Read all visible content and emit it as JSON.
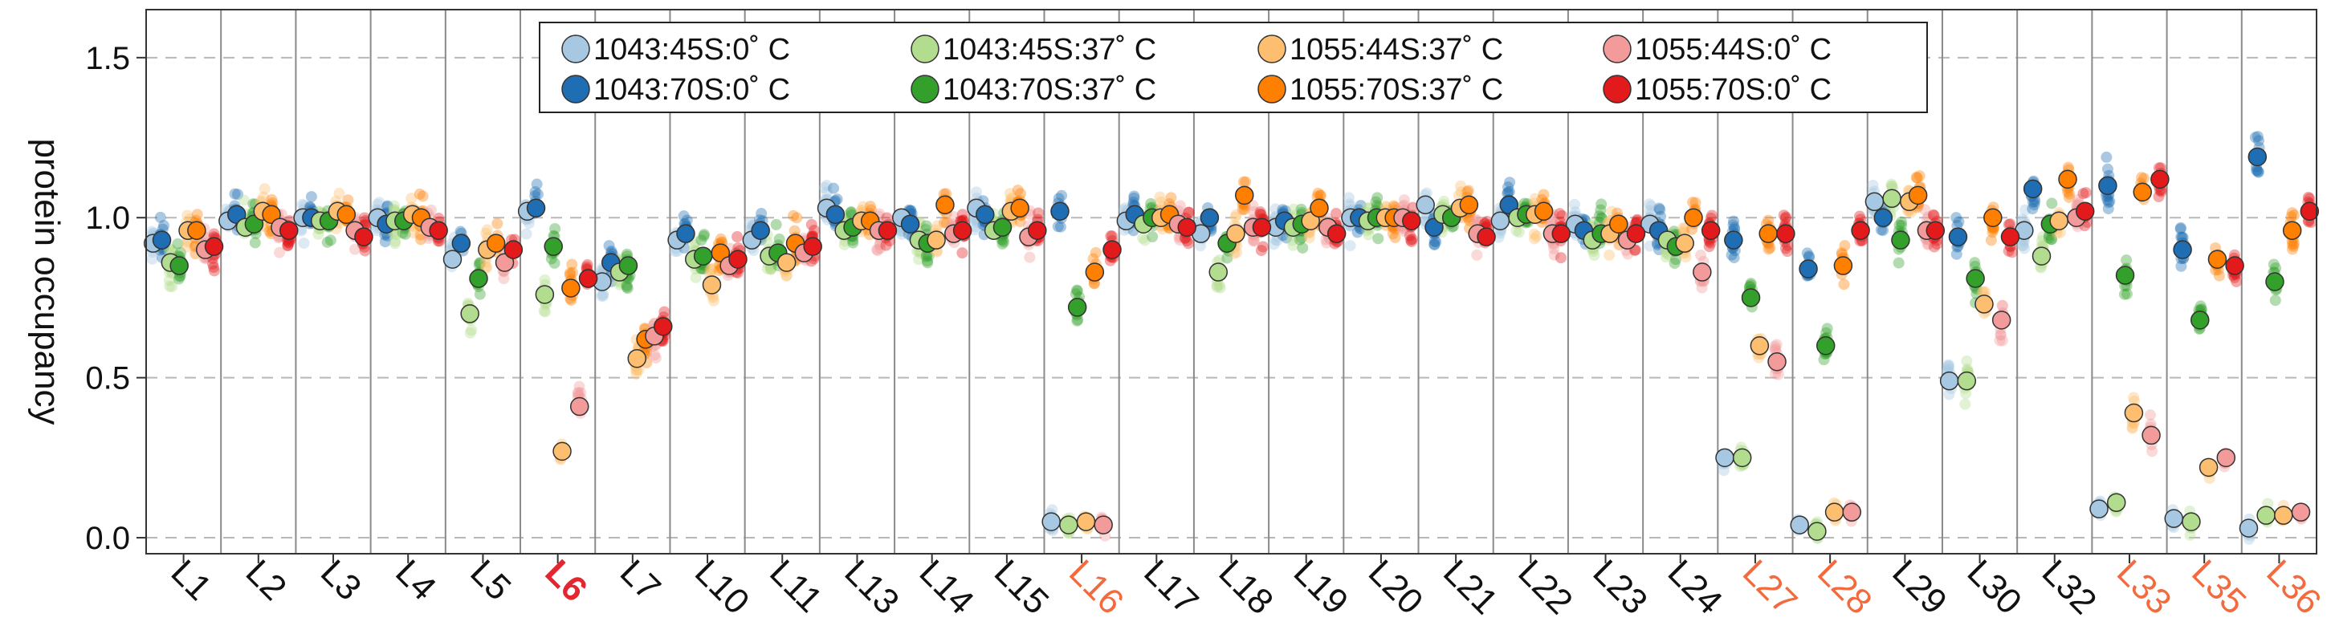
{
  "chart_data": {
    "type": "scatter",
    "title": "",
    "xlabel": "",
    "ylabel": "protein occupancy",
    "ylim": [
      -0.05,
      1.65
    ],
    "yticks": [
      0.0,
      0.5,
      1.0,
      1.5
    ],
    "ytick_labels": [
      "0.0",
      "0.5",
      "1.0",
      "1.5"
    ],
    "grid": "horizontal-dashed",
    "legend_placement": "top-center",
    "categories": [
      "L1",
      "L2",
      "L3",
      "L4",
      "L5",
      "L6",
      "L7",
      "L10",
      "L11",
      "L13",
      "L14",
      "L15",
      "L16",
      "L17",
      "L18",
      "L19",
      "L20",
      "L21",
      "L22",
      "L23",
      "L24",
      "L27",
      "L28",
      "L29",
      "L30",
      "L32",
      "L33",
      "L35",
      "L36"
    ],
    "category_styles": {
      "L6": {
        "color": "#e3262f",
        "bold": true
      },
      "L16": {
        "color": "#f26a3d",
        "bold": false
      },
      "L27": {
        "color": "#f26a3d",
        "bold": false
      },
      "L28": {
        "color": "#f26a3d",
        "bold": false
      },
      "L33": {
        "color": "#f26a3d",
        "bold": false
      },
      "L35": {
        "color": "#f26a3d",
        "bold": false
      },
      "L36": {
        "color": "#f26a3d",
        "bold": false
      }
    },
    "default_category_color": "#111111",
    "series": [
      {
        "name": "1043:45S:0˚ C",
        "color": "#a6c8e2",
        "values": [
          0.92,
          0.99,
          1.0,
          1.0,
          0.87,
          1.02,
          0.8,
          0.93,
          0.93,
          1.03,
          1.0,
          1.03,
          0.05,
          0.99,
          0.95,
          0.97,
          1.0,
          1.04,
          0.99,
          0.98,
          0.98,
          0.25,
          0.04,
          1.05,
          0.49,
          0.96,
          0.09,
          0.06,
          0.03
        ]
      },
      {
        "name": "1043:70S:0˚ C",
        "color": "#1f6eb4",
        "values": [
          0.93,
          1.01,
          1.0,
          0.98,
          0.92,
          1.03,
          0.86,
          0.95,
          0.96,
          1.01,
          0.98,
          1.01,
          1.02,
          1.01,
          1.0,
          0.99,
          1.0,
          0.97,
          1.04,
          0.96,
          0.96,
          0.93,
          0.84,
          1.0,
          0.94,
          1.09,
          1.1,
          0.9,
          1.19
        ]
      },
      {
        "name": "1043:45S:37˚ C",
        "color": "#b2dc8e",
        "values": [
          0.86,
          0.97,
          0.99,
          0.99,
          0.7,
          0.76,
          0.83,
          0.87,
          0.88,
          0.96,
          0.93,
          0.96,
          0.04,
          0.98,
          0.83,
          0.97,
          0.99,
          1.01,
          1.0,
          0.93,
          0.93,
          0.25,
          0.02,
          1.06,
          0.49,
          0.88,
          0.11,
          0.05,
          0.07
        ]
      },
      {
        "name": "1043:70S:37˚ C",
        "color": "#34a02c",
        "values": [
          0.85,
          0.98,
          0.99,
          0.99,
          0.81,
          0.91,
          0.85,
          0.88,
          0.89,
          0.97,
          0.92,
          0.97,
          0.72,
          1.0,
          0.92,
          0.98,
          1.0,
          1.0,
          1.01,
          0.95,
          0.91,
          0.75,
          0.6,
          0.93,
          0.81,
          0.98,
          0.82,
          0.68,
          0.8
        ]
      },
      {
        "name": "1055:44S:37˚ C",
        "color": "#fdbf6f",
        "values": [
          0.96,
          1.02,
          1.02,
          1.01,
          0.9,
          0.27,
          0.56,
          0.79,
          0.86,
          0.99,
          0.93,
          1.02,
          0.05,
          1.0,
          0.95,
          0.99,
          1.0,
          1.03,
          1.01,
          0.95,
          0.92,
          0.6,
          0.08,
          1.05,
          0.73,
          0.99,
          0.39,
          0.22,
          0.07
        ]
      },
      {
        "name": "1055:70S:37˚ C",
        "color": "#ff7f00",
        "values": [
          0.96,
          1.01,
          1.01,
          1.0,
          0.92,
          0.78,
          0.62,
          0.89,
          0.92,
          0.99,
          1.04,
          1.03,
          0.83,
          1.01,
          1.07,
          1.03,
          1.0,
          1.04,
          1.02,
          0.98,
          1.0,
          0.95,
          0.85,
          1.07,
          1.0,
          1.12,
          1.08,
          0.87,
          0.96
        ]
      },
      {
        "name": "1055:44S:0˚ C",
        "color": "#f39a9a",
        "values": [
          0.9,
          0.97,
          0.96,
          0.97,
          0.86,
          0.41,
          0.63,
          0.85,
          0.89,
          0.96,
          0.95,
          0.94,
          0.04,
          0.98,
          0.97,
          0.97,
          1.0,
          0.95,
          0.95,
          0.93,
          0.83,
          0.55,
          0.08,
          0.96,
          0.68,
          1.0,
          0.32,
          0.25,
          0.08
        ]
      },
      {
        "name": "1055:70S:0˚ C",
        "color": "#e31a1c",
        "values": [
          0.91,
          0.96,
          0.94,
          0.96,
          0.9,
          0.81,
          0.66,
          0.87,
          0.91,
          0.96,
          0.96,
          0.96,
          0.9,
          0.97,
          0.97,
          0.95,
          0.99,
          0.94,
          0.95,
          0.95,
          0.96,
          0.95,
          0.96,
          0.96,
          0.94,
          1.02,
          1.12,
          0.85,
          1.02
        ]
      }
    ]
  }
}
